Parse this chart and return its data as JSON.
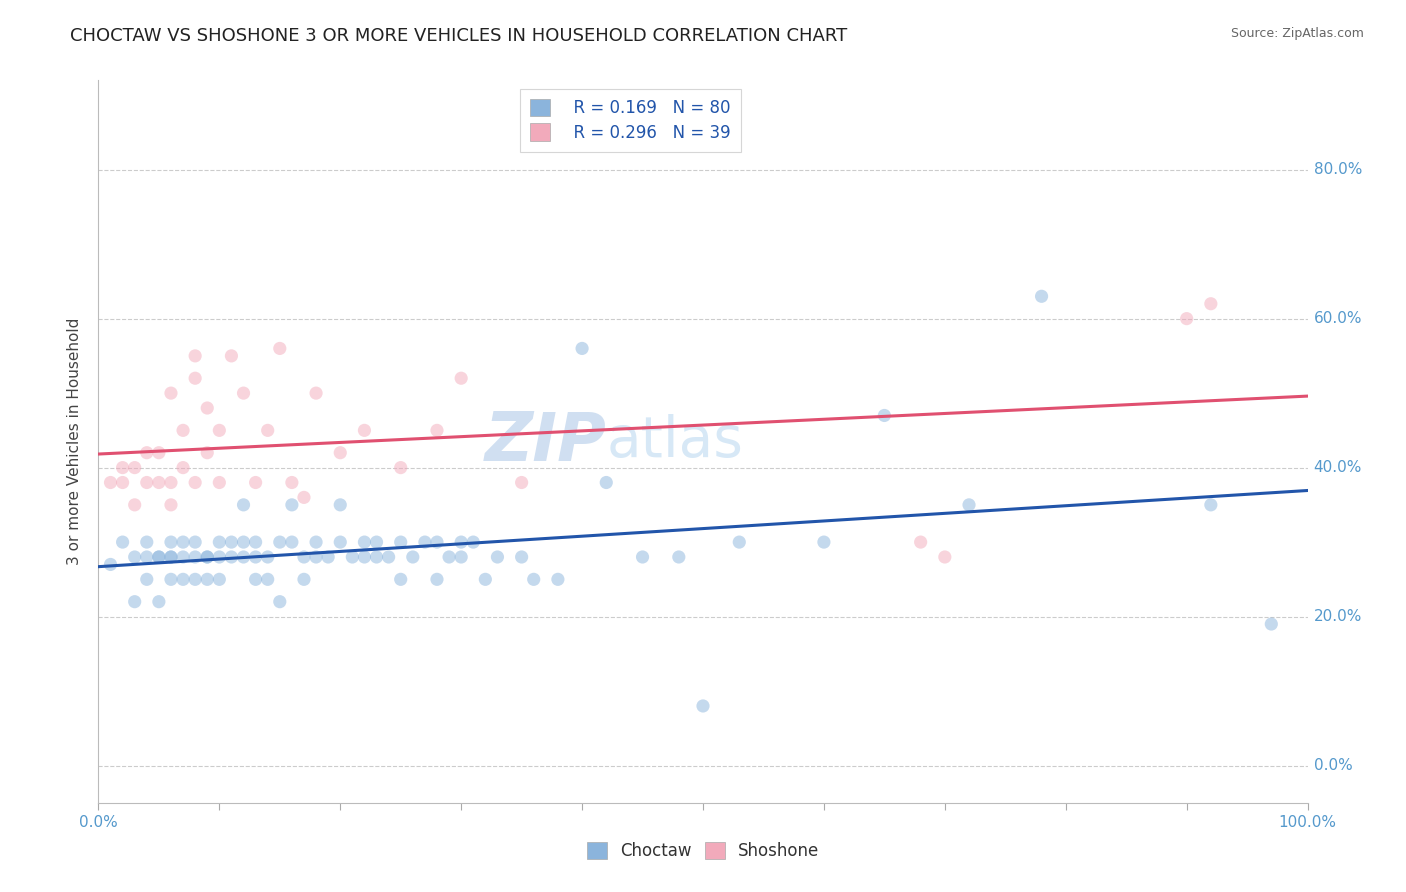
{
  "title": "CHOCTAW VS SHOSHONE 3 OR MORE VEHICLES IN HOUSEHOLD CORRELATION CHART",
  "source": "Source: ZipAtlas.com",
  "ylabel": "3 or more Vehicles in Household",
  "xlim": [
    0.0,
    1.0
  ],
  "ylim": [
    -0.05,
    0.92
  ],
  "yticks": [
    0.0,
    0.2,
    0.4,
    0.6,
    0.8
  ],
  "ytick_labels": [
    "0.0%",
    "20.0%",
    "40.0%",
    "60.0%",
    "80.0%"
  ],
  "choctaw_color": "#8BB4DC",
  "shoshone_color": "#F2AABB",
  "choctaw_line_color": "#2255AA",
  "shoshone_line_color": "#E05070",
  "legend_R_choctaw": "R = 0.169",
  "legend_N_choctaw": "N = 80",
  "legend_R_shoshone": "R = 0.296",
  "legend_N_shoshone": "N = 39",
  "watermark": "ZIPatlas",
  "background_color": "#FFFFFF",
  "choctaw_x": [
    0.01,
    0.02,
    0.03,
    0.03,
    0.04,
    0.04,
    0.04,
    0.05,
    0.05,
    0.05,
    0.06,
    0.06,
    0.06,
    0.06,
    0.07,
    0.07,
    0.07,
    0.08,
    0.08,
    0.08,
    0.09,
    0.09,
    0.09,
    0.1,
    0.1,
    0.1,
    0.11,
    0.11,
    0.12,
    0.12,
    0.12,
    0.13,
    0.13,
    0.13,
    0.14,
    0.14,
    0.15,
    0.15,
    0.16,
    0.16,
    0.17,
    0.17,
    0.18,
    0.18,
    0.19,
    0.2,
    0.2,
    0.21,
    0.22,
    0.22,
    0.23,
    0.23,
    0.24,
    0.25,
    0.25,
    0.26,
    0.27,
    0.28,
    0.28,
    0.29,
    0.3,
    0.3,
    0.31,
    0.32,
    0.33,
    0.35,
    0.36,
    0.38,
    0.4,
    0.42,
    0.45,
    0.48,
    0.5,
    0.53,
    0.6,
    0.65,
    0.72,
    0.78,
    0.92,
    0.97
  ],
  "choctaw_y": [
    0.27,
    0.3,
    0.28,
    0.22,
    0.25,
    0.3,
    0.28,
    0.28,
    0.22,
    0.28,
    0.28,
    0.3,
    0.25,
    0.28,
    0.3,
    0.28,
    0.25,
    0.28,
    0.3,
    0.25,
    0.28,
    0.25,
    0.28,
    0.28,
    0.3,
    0.25,
    0.28,
    0.3,
    0.28,
    0.3,
    0.35,
    0.25,
    0.28,
    0.3,
    0.28,
    0.25,
    0.3,
    0.22,
    0.3,
    0.35,
    0.28,
    0.25,
    0.3,
    0.28,
    0.28,
    0.3,
    0.35,
    0.28,
    0.3,
    0.28,
    0.3,
    0.28,
    0.28,
    0.3,
    0.25,
    0.28,
    0.3,
    0.25,
    0.3,
    0.28,
    0.3,
    0.28,
    0.3,
    0.25,
    0.28,
    0.28,
    0.25,
    0.25,
    0.56,
    0.38,
    0.28,
    0.28,
    0.08,
    0.3,
    0.3,
    0.47,
    0.35,
    0.63,
    0.35,
    0.19
  ],
  "shoshone_x": [
    0.01,
    0.02,
    0.02,
    0.03,
    0.03,
    0.04,
    0.04,
    0.05,
    0.05,
    0.06,
    0.06,
    0.06,
    0.07,
    0.07,
    0.08,
    0.08,
    0.08,
    0.09,
    0.09,
    0.1,
    0.1,
    0.11,
    0.12,
    0.13,
    0.14,
    0.15,
    0.16,
    0.17,
    0.18,
    0.2,
    0.22,
    0.25,
    0.28,
    0.3,
    0.35,
    0.68,
    0.7,
    0.9,
    0.92
  ],
  "shoshone_y": [
    0.38,
    0.4,
    0.38,
    0.35,
    0.4,
    0.38,
    0.42,
    0.38,
    0.42,
    0.35,
    0.5,
    0.38,
    0.4,
    0.45,
    0.38,
    0.52,
    0.55,
    0.42,
    0.48,
    0.38,
    0.45,
    0.55,
    0.5,
    0.38,
    0.45,
    0.56,
    0.38,
    0.36,
    0.5,
    0.42,
    0.45,
    0.4,
    0.45,
    0.52,
    0.38,
    0.3,
    0.28,
    0.6,
    0.62
  ],
  "grid_color": "#CCCCCC",
  "title_fontsize": 13,
  "axis_label_fontsize": 11,
  "tick_fontsize": 11,
  "legend_fontsize": 12,
  "watermark_fontsize": 48,
  "watermark_color": "#C8DAEF",
  "marker_size": 90,
  "marker_alpha": 0.5,
  "line_width": 2.2
}
